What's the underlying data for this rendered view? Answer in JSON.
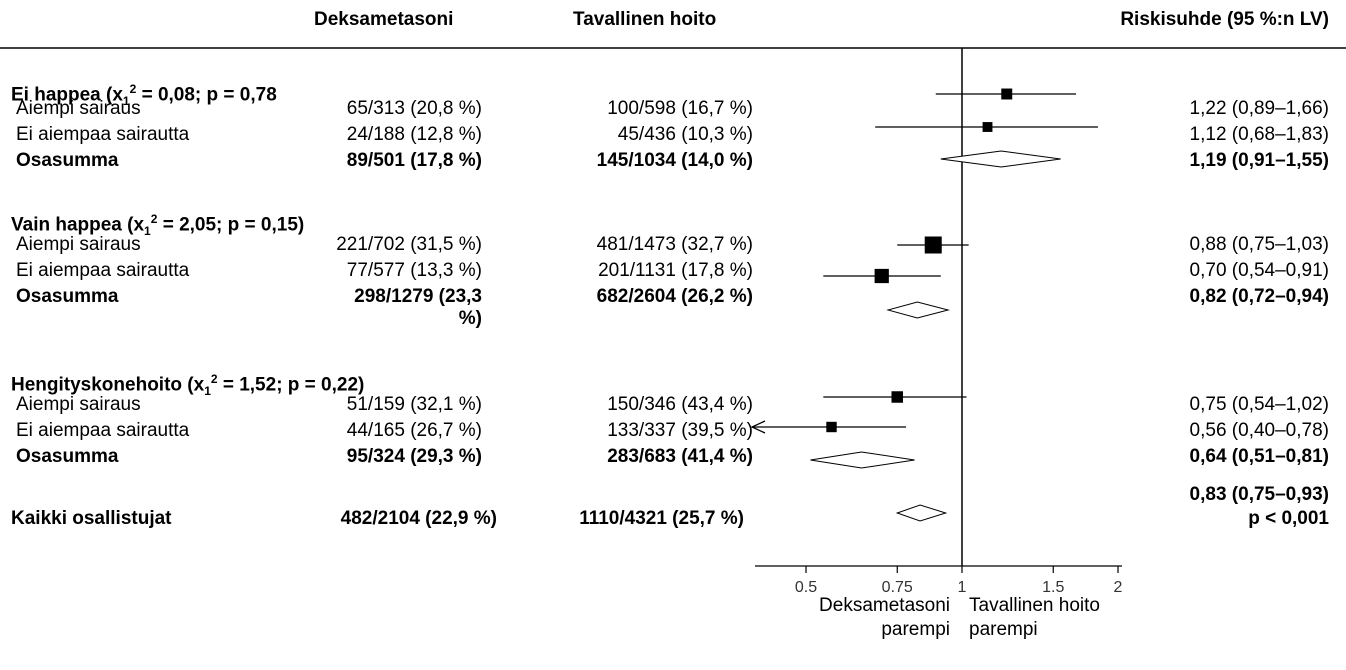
{
  "headers": {
    "dex": "Deksametasoni",
    "usual": "Tavallinen hoito",
    "rr": "Riskisuhde (95 %:n  LV)"
  },
  "groups": [
    {
      "heading_pre": "Ei happea (x",
      "heading_sub": "1",
      "heading_sup": "2",
      "heading_post": " = 0,08; p = 0,78",
      "rows": [
        {
          "label": "Aiempi sairaus",
          "dex": "65/313 (20,8 %)",
          "usual": "100/598 (16,7 %)",
          "rr_text": "1,22 (0,89–1,66)"
        },
        {
          "label": "Ei aiempaa sairautta",
          "dex": "24/188 (12,8 %)",
          "usual": "45/436 (10,3 %)",
          "rr_text": "1,12 (0,68–1,83)"
        },
        {
          "label": "Osasumma",
          "dex": "89/501 (17,8 %)",
          "usual": "145/1034 (14,0 %)",
          "rr_text": "1,19 (0,91–1,55)"
        }
      ]
    },
    {
      "heading_pre": "Vain happea (x",
      "heading_sub": "1",
      "heading_sup": "2",
      "heading_post": " = 2,05; p = 0,15)",
      "rows": [
        {
          "label": "Aiempi sairaus",
          "dex": "221/702 (31,5 %)",
          "usual": "481/1473 (32,7 %)",
          "rr_text": "0,88 (0,75–1,03)"
        },
        {
          "label": "Ei aiempaa sairautta",
          "dex": "77/577 (13,3 %)",
          "usual": "201/1131 (17,8 %)",
          "rr_text": "0,70 (0,54–0,91)"
        },
        {
          "label": "Osasumma",
          "dex": "298/1279 (23,3",
          "dex_cont": "%)",
          "usual": "682/2604 (26,2 %)",
          "rr_text": "0,82 (0,72–0,94)"
        }
      ]
    },
    {
      "heading_pre": "Hengityskonehoito  (x",
      "heading_sub": "1",
      "heading_sup": "2",
      "heading_post": " = 1,52; p = 0,22)",
      "rows": [
        {
          "label": "Aiempi sairaus",
          "dex": "51/159 (32,1 %)",
          "usual": "150/346 (43,4 %)",
          "rr_text": "0,75 (0,54–1,02)"
        },
        {
          "label": "Ei aiempaa sairautta",
          "dex": "44/165 (26,7 %)",
          "usual": "133/337 (39,5 %)",
          "rr_text": "0,56 (0,40–0,78)"
        },
        {
          "label": "Osasumma",
          "dex": "95/324 (29,3 %)",
          "usual": "283/683 (41,4 %)",
          "rr_text": "0,64 (0,51–0,81)"
        }
      ]
    }
  ],
  "overall": {
    "label": "Kaikki osallistujat",
    "dex": "482/2104 (22,9 %)",
    "usual": "1110/4321 (25,7 %)",
    "rr_text": "0,83 (0,75–0,93)",
    "p_text": "p < 0,001"
  },
  "axis": {
    "ticks": [
      0.5,
      0.75,
      1,
      1.5,
      2
    ],
    "tick_labels": [
      "0.5",
      "0.75",
      "1",
      "1.5",
      "2"
    ],
    "scale": "log",
    "left_label_line1": "Deksametasoni",
    "left_label_line2": "parempi",
    "right_label_line1": "Tavallinen hoito",
    "right_label_line2": "parempi"
  },
  "chart_data": {
    "type": "forest",
    "x_scale": "log",
    "reference_line": 1,
    "xlim": [
      0.4,
      2.0
    ],
    "points": [
      {
        "group": "Ei happea",
        "label": "Aiempi sairaus",
        "rr": 1.22,
        "lo": 0.89,
        "hi": 1.66,
        "kind": "square",
        "weight": 0.45
      },
      {
        "group": "Ei happea",
        "label": "Ei aiempaa sairautta",
        "rr": 1.12,
        "lo": 0.68,
        "hi": 1.83,
        "kind": "square",
        "weight": 0.35
      },
      {
        "group": "Ei happea",
        "label": "Osasumma",
        "rr": 1.19,
        "lo": 0.91,
        "hi": 1.55,
        "kind": "diamond"
      },
      {
        "group": "Vain happea",
        "label": "Aiempi sairaus",
        "rr": 0.88,
        "lo": 0.75,
        "hi": 1.03,
        "kind": "square",
        "weight": 1.0
      },
      {
        "group": "Vain happea",
        "label": "Ei aiempaa sairautta",
        "rr": 0.7,
        "lo": 0.54,
        "hi": 0.91,
        "kind": "square",
        "weight": 0.75
      },
      {
        "group": "Vain happea",
        "label": "Osasumma",
        "rr": 0.82,
        "lo": 0.72,
        "hi": 0.94,
        "kind": "diamond"
      },
      {
        "group": "Hengityskonehoito",
        "label": "Aiempi sairaus",
        "rr": 0.75,
        "lo": 0.54,
        "hi": 1.02,
        "kind": "square",
        "weight": 0.5
      },
      {
        "group": "Hengityskonehoito",
        "label": "Ei aiempaa sairautta",
        "rr": 0.56,
        "lo": 0.4,
        "hi": 0.78,
        "kind": "square",
        "weight": 0.4,
        "lo_arrow": true
      },
      {
        "group": "Hengityskonehoito",
        "label": "Osasumma",
        "rr": 0.64,
        "lo": 0.51,
        "hi": 0.81,
        "kind": "diamond"
      },
      {
        "group": "Kaikki",
        "label": "Kaikki osallistujat",
        "rr": 0.83,
        "lo": 0.75,
        "hi": 0.93,
        "kind": "diamond"
      }
    ]
  }
}
